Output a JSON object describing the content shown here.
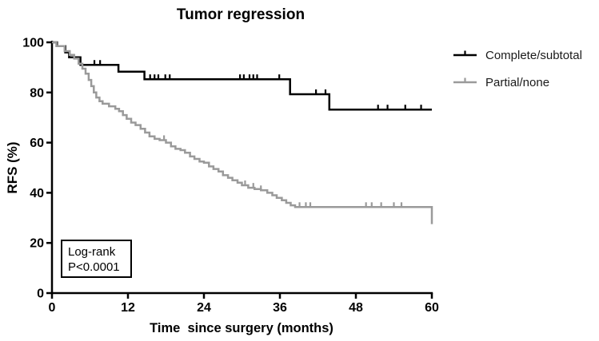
{
  "chart_data": {
    "type": "line",
    "subtype": "kaplan-meier-step",
    "title": "Tumor regression",
    "xlabel": "Time  since surgery (months)",
    "ylabel": "RFS (%)",
    "xlim": [
      0,
      60
    ],
    "ylim": [
      0,
      100
    ],
    "xticks": [
      0,
      12,
      24,
      36,
      48,
      60
    ],
    "yticks": [
      0,
      20,
      40,
      60,
      80,
      100
    ],
    "grid": false,
    "legend_position": "right-top-outside",
    "annotation": [
      "Log-rank",
      "P<0.0001"
    ],
    "colors": {
      "axis": "#000000",
      "background": "#ffffff"
    },
    "series": [
      {
        "name": "Complete/subtotal",
        "color": "#000000",
        "steps": [
          [
            0,
            100
          ],
          [
            0.8,
            98.5
          ],
          [
            2.1,
            96
          ],
          [
            2.7,
            94
          ],
          [
            4.5,
            91
          ],
          [
            10.5,
            88.3
          ],
          [
            14.6,
            85.3
          ],
          [
            37.6,
            79.3
          ],
          [
            43.8,
            73.2
          ],
          [
            60,
            73.2
          ]
        ],
        "censor_months": [
          6.7,
          7.6,
          15.5,
          16.2,
          16.8,
          17.9,
          18.6,
          29.7,
          30.3,
          31.2,
          31.8,
          32.4,
          35.9,
          41.7,
          43.2,
          51.5,
          53,
          55.8,
          58.3
        ]
      },
      {
        "name": "Partial/none",
        "color": "#9a9a9a",
        "steps": [
          [
            0,
            100
          ],
          [
            0.7,
            98.5
          ],
          [
            2,
            96.5
          ],
          [
            2.8,
            95
          ],
          [
            3.5,
            93.5
          ],
          [
            4.2,
            91.5
          ],
          [
            4.8,
            89.5
          ],
          [
            5.3,
            87.5
          ],
          [
            5.8,
            85
          ],
          [
            6.2,
            82.5
          ],
          [
            6.6,
            80
          ],
          [
            7,
            78
          ],
          [
            7.5,
            76.5
          ],
          [
            8,
            75.5
          ],
          [
            9,
            74.5
          ],
          [
            10,
            73.5
          ],
          [
            10.6,
            72.5
          ],
          [
            11.2,
            71
          ],
          [
            11.8,
            69.5
          ],
          [
            12.5,
            68
          ],
          [
            13.2,
            67
          ],
          [
            14,
            65.5
          ],
          [
            14.7,
            64
          ],
          [
            15.4,
            62.5
          ],
          [
            16.2,
            61.5
          ],
          [
            17,
            61
          ],
          [
            18,
            60
          ],
          [
            18.8,
            58.5
          ],
          [
            19.5,
            57.5
          ],
          [
            20.3,
            57
          ],
          [
            21,
            56
          ],
          [
            21.8,
            54.5
          ],
          [
            22.5,
            53.5
          ],
          [
            23.3,
            52.5
          ],
          [
            24,
            52
          ],
          [
            24.8,
            50.5
          ],
          [
            25.5,
            49.5
          ],
          [
            26.3,
            48.5
          ],
          [
            27,
            47
          ],
          [
            27.8,
            46
          ],
          [
            28.5,
            45
          ],
          [
            29.3,
            44
          ],
          [
            30,
            43
          ],
          [
            31,
            42
          ],
          [
            32,
            41.5
          ],
          [
            33,
            41
          ],
          [
            34,
            40
          ],
          [
            34.8,
            39
          ],
          [
            35.5,
            38
          ],
          [
            36.3,
            37
          ],
          [
            37,
            36
          ],
          [
            37.7,
            35
          ],
          [
            38.4,
            34.3
          ],
          [
            59.7,
            34.3
          ],
          [
            60,
            27.5
          ]
        ],
        "censor_months": [
          17.7,
          30.5,
          31.8,
          33,
          39.1,
          40.1,
          40.8,
          49.6,
          50.5,
          52,
          54,
          55.2
        ]
      }
    ]
  }
}
